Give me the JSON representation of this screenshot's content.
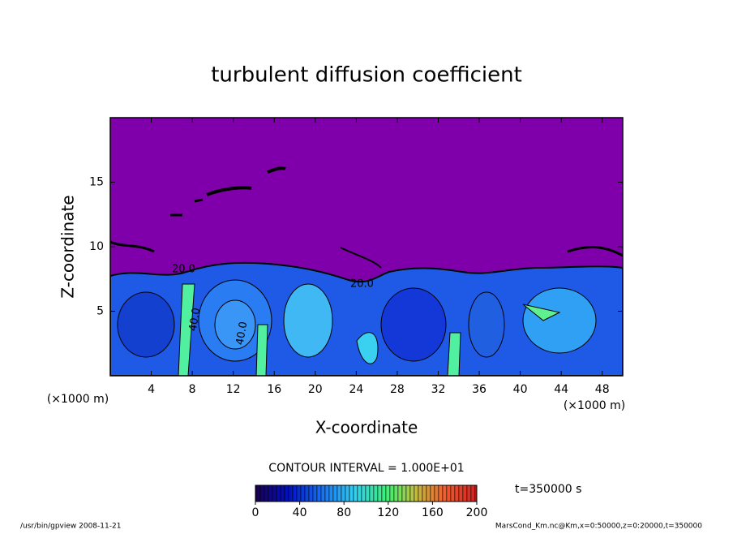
{
  "chart_data": {
    "type": "contour",
    "title": "turbulent diffusion coefficient",
    "xlabel": "X-coordinate",
    "ylabel": "Z-coordinate",
    "x_unit": "(×1000 m)",
    "y_unit": "(×1000 m)",
    "xlim": [
      0,
      50
    ],
    "xticks": [
      4,
      8,
      12,
      16,
      20,
      24,
      28,
      32,
      36,
      40,
      44,
      48
    ],
    "ylim": [
      0,
      20
    ],
    "yticks": [
      5,
      10,
      15
    ],
    "contour_labels": [
      "20.0",
      "40.0",
      "40.0",
      "20.0"
    ],
    "colorbar": {
      "title": "CONTOUR INTERVAL = 1.000E+01",
      "lim": [
        0,
        200
      ],
      "ticks": [
        0,
        40,
        80,
        120,
        160,
        200
      ]
    },
    "time_label": "t=350000 s",
    "footer_left": "/usr/bin/gpview   2008-11-21",
    "footer_right": "MarsCond_Km.nc@Km,x=0:50000,z=0:20000,t=350000"
  }
}
